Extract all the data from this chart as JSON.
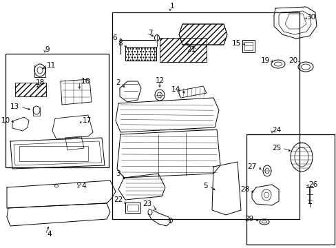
{
  "bg_color": "#ffffff",
  "line_color": "#000000",
  "lw": 0.8,
  "thin": 0.5,
  "fs": 7.5
}
